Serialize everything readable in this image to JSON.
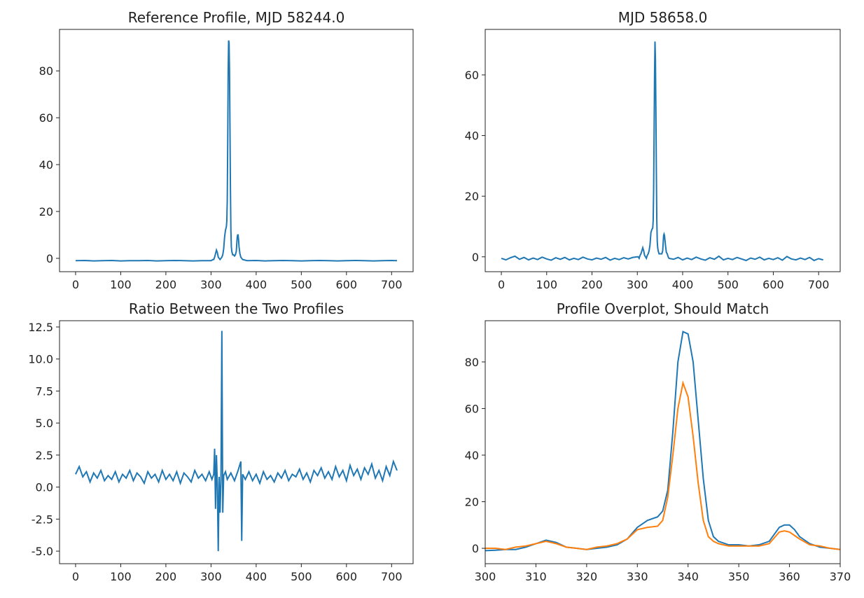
{
  "chart_data": [
    {
      "type": "line",
      "title": "Reference Profile, MJD 58244.0",
      "x": [
        0,
        20,
        40,
        60,
        80,
        100,
        120,
        140,
        160,
        180,
        200,
        220,
        240,
        260,
        280,
        300,
        302,
        304,
        306,
        308,
        310,
        312,
        314,
        316,
        318,
        320,
        322,
        324,
        326,
        328,
        330,
        332,
        334,
        335,
        336,
        337,
        338,
        339,
        340,
        341,
        342,
        343,
        344,
        345,
        346,
        348,
        350,
        352,
        354,
        356,
        358,
        359,
        360,
        361,
        362,
        364,
        366,
        368,
        370,
        380,
        400,
        420,
        440,
        460,
        480,
        500,
        520,
        540,
        560,
        580,
        600,
        620,
        640,
        660,
        680,
        700,
        712
      ],
      "series": [
        {
          "color": "#1f77b4",
          "values": [
            -1,
            -0.9,
            -1.1,
            -1,
            -0.9,
            -1.1,
            -1,
            -1,
            -0.9,
            -1.1,
            -1,
            -0.9,
            -1,
            -1.1,
            -1,
            -1,
            -0.8,
            -0.5,
            -0.5,
            0.5,
            2,
            3.5,
            2.5,
            0.5,
            0,
            -0.5,
            0,
            0.5,
            1.5,
            4,
            9,
            12,
            13.5,
            16,
            25,
            50,
            80,
            93,
            92,
            80,
            55,
            30,
            12,
            5,
            3,
            1.5,
            1.5,
            1,
            1.5,
            3,
            9,
            10,
            10,
            8,
            5,
            2,
            0.5,
            0,
            -0.5,
            -1,
            -0.9,
            -1.1,
            -1,
            -0.9,
            -1,
            -1.1,
            -1,
            -0.9,
            -1,
            -1.1,
            -1,
            -0.9,
            -1,
            -1.1,
            -1,
            -0.9,
            -1
          ]
        }
      ],
      "xlim": [
        -35.6,
        747.6
      ],
      "ylim": [
        -5.7,
        97.7
      ],
      "xticks": [
        0,
        100,
        200,
        300,
        400,
        500,
        600,
        700
      ],
      "yticks": [
        0,
        20,
        40,
        60,
        80
      ]
    },
    {
      "type": "line",
      "title": "MJD 58658.0",
      "x": [
        0,
        10,
        20,
        30,
        40,
        50,
        60,
        70,
        80,
        90,
        100,
        110,
        120,
        130,
        140,
        150,
        160,
        170,
        180,
        190,
        200,
        210,
        220,
        230,
        240,
        250,
        260,
        270,
        280,
        290,
        300,
        302,
        304,
        306,
        308,
        310,
        312,
        314,
        316,
        318,
        320,
        322,
        324,
        326,
        328,
        330,
        332,
        334,
        335,
        336,
        337,
        338,
        339,
        340,
        341,
        342,
        343,
        344,
        345,
        346,
        348,
        350,
        352,
        354,
        356,
        358,
        359,
        360,
        361,
        362,
        364,
        366,
        368,
        370,
        380,
        390,
        400,
        410,
        420,
        430,
        440,
        450,
        460,
        470,
        480,
        490,
        500,
        510,
        520,
        530,
        540,
        550,
        560,
        570,
        580,
        590,
        600,
        610,
        620,
        630,
        640,
        650,
        660,
        670,
        680,
        690,
        700,
        710
      ],
      "series": [
        {
          "color": "#1f77b4",
          "values": [
            -0.5,
            -1,
            -0.3,
            0.2,
            -0.8,
            -0.2,
            -1,
            -0.4,
            -0.9,
            -0.1,
            -0.7,
            -1.1,
            -0.3,
            -0.8,
            -0.2,
            -1,
            -0.5,
            -0.9,
            -0.1,
            -0.7,
            -1,
            -0.4,
            -0.8,
            -0.2,
            -1.1,
            -0.5,
            -0.9,
            -0.3,
            -0.7,
            -0.2,
            0,
            0,
            -0.5,
            0.5,
            1,
            2,
            3,
            2,
            0.5,
            0,
            -0.5,
            0.5,
            1,
            2,
            4,
            8,
            9,
            9.5,
            12,
            22,
            40,
            60,
            71,
            65,
            48,
            28,
            12,
            5,
            3,
            2,
            1,
            1,
            1,
            1,
            2,
            7,
            7.5,
            7,
            5.5,
            4,
            1.5,
            1,
            0,
            -0.5,
            -0.8,
            -0.2,
            -1,
            -0.4,
            -0.9,
            -0.1,
            -0.7,
            -1.1,
            -0.3,
            -0.8,
            0.2,
            -1,
            -0.5,
            -0.9,
            -0.2,
            -0.7,
            -1.2,
            -0.4,
            -0.8,
            -0.1,
            -1,
            -0.5,
            -0.9,
            -0.3,
            -1.1,
            0.1,
            -0.7,
            -1,
            -0.4,
            -0.9,
            -0.2,
            -1.2,
            -0.6,
            -1
          ]
        }
      ],
      "xlim": [
        -35.6,
        747.6
      ],
      "ylim": [
        -4.9,
        75
      ],
      "xticks": [
        0,
        100,
        200,
        300,
        400,
        500,
        600,
        700
      ],
      "yticks": [
        0,
        20,
        40,
        60
      ]
    },
    {
      "type": "line",
      "title": "Ratio Between the Two Profiles",
      "x": [
        0,
        8,
        16,
        24,
        32,
        40,
        48,
        56,
        64,
        72,
        80,
        88,
        96,
        104,
        112,
        120,
        128,
        136,
        144,
        152,
        160,
        168,
        176,
        184,
        192,
        200,
        208,
        216,
        224,
        232,
        240,
        248,
        256,
        264,
        272,
        280,
        288,
        296,
        302,
        306,
        308,
        310,
        312,
        314,
        316,
        318,
        320,
        322,
        324,
        326,
        328,
        332,
        336,
        344,
        352,
        360,
        366,
        368,
        370,
        376,
        384,
        392,
        400,
        408,
        416,
        424,
        432,
        440,
        448,
        456,
        464,
        472,
        480,
        488,
        496,
        504,
        512,
        520,
        528,
        536,
        544,
        552,
        560,
        568,
        576,
        584,
        592,
        600,
        608,
        616,
        624,
        632,
        640,
        648,
        656,
        664,
        672,
        680,
        688,
        696,
        704,
        712
      ],
      "series": [
        {
          "color": "#1f77b4",
          "values": [
            1.0,
            1.6,
            0.8,
            1.2,
            0.4,
            1.1,
            0.7,
            1.3,
            0.5,
            0.9,
            0.6,
            1.2,
            0.4,
            1.0,
            0.7,
            1.3,
            0.5,
            1.1,
            0.8,
            0.3,
            1.2,
            0.7,
            1.0,
            0.4,
            1.3,
            0.6,
            1.0,
            0.5,
            1.2,
            0.3,
            1.1,
            0.8,
            0.4,
            1.3,
            0.7,
            1.0,
            0.5,
            1.2,
            0.6,
            1.0,
            3.0,
            -1.7,
            2.5,
            0.2,
            -5.0,
            0.8,
            -2.0,
            0.5,
            12.2,
            -2.0,
            0.9,
            1.2,
            0.6,
            1.1,
            0.5,
            1.3,
            2.0,
            -4.2,
            1.0,
            0.6,
            1.2,
            0.5,
            1.0,
            0.3,
            1.2,
            0.6,
            0.9,
            0.4,
            1.1,
            0.7,
            1.3,
            0.5,
            1.0,
            0.8,
            1.4,
            0.6,
            1.1,
            0.4,
            1.3,
            0.9,
            1.5,
            0.7,
            1.2,
            0.6,
            1.6,
            0.8,
            1.3,
            0.5,
            1.7,
            0.9,
            1.4,
            0.6,
            1.5,
            1.0,
            1.8,
            0.7,
            1.3,
            0.5,
            1.6,
            0.9,
            2.0,
            1.3
          ]
        }
      ],
      "xlim": [
        -35.6,
        747.6
      ],
      "ylim": [
        -5.98,
        12.99
      ],
      "xticks": [
        0,
        100,
        200,
        300,
        400,
        500,
        600,
        700
      ],
      "yticks": [
        12.5,
        {
          "value": 10,
          "label": "10.0"
        },
        7.5,
        {
          "value": 5,
          "label": "5.0"
        },
        2.5,
        {
          "value": 0,
          "label": "0.0"
        },
        -2.5,
        {
          "value": -5,
          "label": "-5.0"
        }
      ]
    },
    {
      "type": "line",
      "title": "Profile Overplot, Should Match",
      "x": [
        300,
        302,
        304,
        306,
        308,
        310,
        312,
        314,
        316,
        318,
        320,
        322,
        324,
        326,
        328,
        330,
        332,
        334,
        335,
        336,
        337,
        338,
        339,
        340,
        341,
        342,
        343,
        344,
        345,
        346,
        348,
        350,
        352,
        354,
        356,
        358,
        359,
        360,
        361,
        362,
        364,
        366,
        368,
        370
      ],
      "series": [
        {
          "color": "#1f77b4",
          "values": [
            -1,
            -0.8,
            -0.5,
            -0.5,
            0.5,
            2,
            3.5,
            2.5,
            0.5,
            0,
            -0.5,
            0,
            0.5,
            1.5,
            4,
            9,
            12,
            13.5,
            16,
            25,
            50,
            80,
            93,
            92,
            80,
            55,
            30,
            12,
            5,
            3,
            1.5,
            1.5,
            1,
            1.5,
            3,
            9,
            10,
            10,
            8,
            5,
            2,
            0.5,
            0,
            -0.5
          ]
        },
        {
          "color": "#ff7f0e",
          "values": [
            0,
            0,
            -0.5,
            0.5,
            1,
            2,
            3,
            2,
            0.5,
            0,
            -0.5,
            0.5,
            1,
            2,
            4,
            8,
            9,
            9.5,
            12,
            22,
            40,
            60,
            71,
            65,
            48,
            28,
            12,
            5,
            3,
            2,
            1,
            1,
            1,
            1,
            2,
            7,
            7.5,
            7,
            5.5,
            4,
            1.5,
            1,
            0,
            -0.5
          ]
        }
      ],
      "xlim": [
        300,
        370
      ],
      "ylim": [
        -6.6,
        97.7
      ],
      "xticks": [
        300,
        310,
        320,
        330,
        340,
        350,
        360,
        370
      ],
      "yticks": [
        0,
        20,
        40,
        60,
        80
      ]
    }
  ]
}
